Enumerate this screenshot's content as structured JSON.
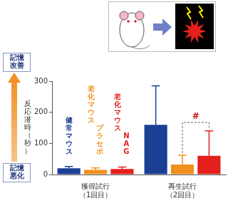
{
  "chart_data": {
    "type": "bar",
    "categories": [
      "獲得試行\n（1回目）",
      "再生試行\n（2回目）"
    ],
    "series": [
      {
        "name": "健常マウス",
        "color": "#1b3f94",
        "values": [
          20,
          160
        ],
        "errors": [
          6,
          125
        ]
      },
      {
        "name": "老化マウス プラセボ",
        "color": "#f0901e",
        "values": [
          15,
          32
        ],
        "errors": [
          6,
          30
        ]
      },
      {
        "name": "老化マウス NAG",
        "color": "#e3201b",
        "values": [
          18,
          60
        ],
        "errors": [
          6,
          80
        ]
      }
    ],
    "ylabel": "反応潜時（秒）",
    "ylim": [
      0,
      300
    ],
    "yticks": [
      0,
      100,
      200,
      300
    ],
    "grid": false,
    "annotations": {
      "top": "記憶\n改善",
      "bottom": "記憶\n悪化"
    },
    "significance": [
      {
        "label": "#",
        "category": "再生試行\n（2回目）",
        "between": [
          "老化マウス プラセボ",
          "老化マウス NAG"
        ]
      }
    ]
  }
}
